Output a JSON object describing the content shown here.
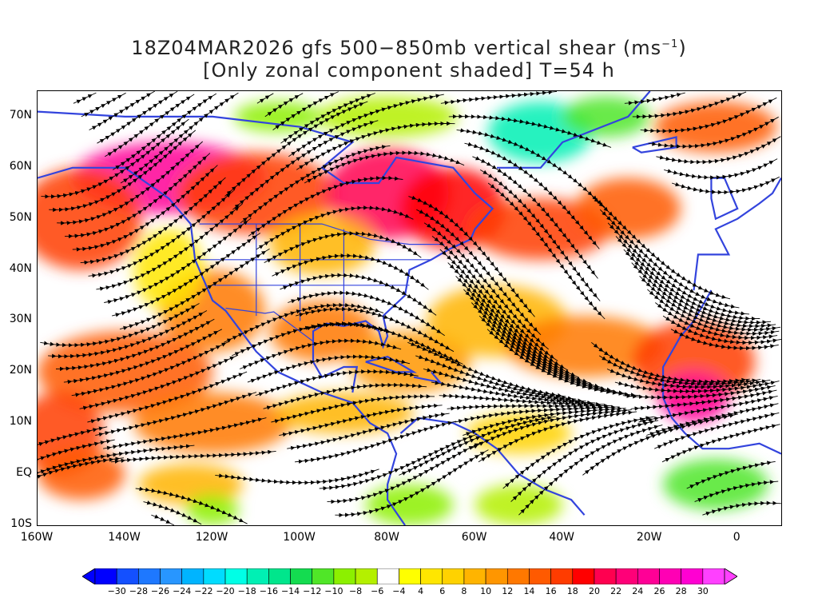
{
  "title": {
    "line1_prefix": "18Z04MAR2026 gfs 500−850mb vertical shear (ms",
    "line1_sup": "−1",
    "line1_suffix": ")",
    "line2": "[Only zonal component shaded] T=54 h"
  },
  "map": {
    "lon_range": [
      -160,
      10
    ],
    "lat_range": [
      -10,
      75
    ],
    "lat_labels": [
      "70N",
      "60N",
      "50N",
      "40N",
      "30N",
      "20N",
      "10N",
      "EQ",
      "10S"
    ],
    "lon_labels": [
      "160W",
      "140W",
      "120W",
      "100W",
      "80W",
      "60W",
      "40W",
      "20W",
      "0"
    ]
  },
  "colorbar": {
    "labels": [
      "-30",
      "-28",
      "-26",
      "-24",
      "-22",
      "-20",
      "-18",
      "-16",
      "-14",
      "-12",
      "-10",
      "-8",
      "-6",
      "-4",
      "4",
      "6",
      "8",
      "10",
      "12",
      "14",
      "16",
      "18",
      "20",
      "22",
      "24",
      "26",
      "28",
      "30"
    ],
    "colors": [
      "#0000ff",
      "#1450ff",
      "#1e78ff",
      "#2896ff",
      "#00b4ff",
      "#00dcff",
      "#00ffe6",
      "#00f0b4",
      "#00e68c",
      "#14dc50",
      "#50e628",
      "#8cf000",
      "#b4f000",
      "#ffffff",
      "#ffff00",
      "#ffe600",
      "#ffd200",
      "#ffb400",
      "#ff9600",
      "#ff7800",
      "#ff5a00",
      "#ff3c00",
      "#ff0000",
      "#ff0050",
      "#ff0078",
      "#ff0096",
      "#ff00b4",
      "#ff00d2",
      "#ff40ff"
    ],
    "arrow_left_color": "#0000ff",
    "arrow_right_color": "#ff40ff"
  }
}
